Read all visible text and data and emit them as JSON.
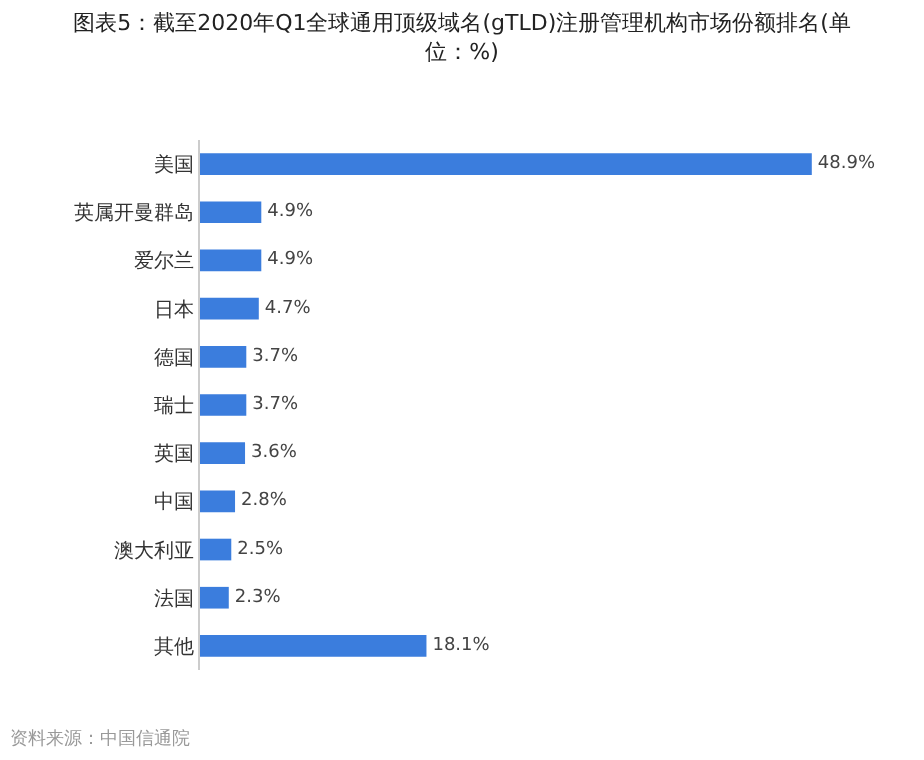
{
  "chart_data": {
    "type": "bar",
    "orientation": "horizontal",
    "title": "图表5：截至2020年Q1全球通用顶级域名(gTLD)注册管理机构市场份额排名(单位：%)",
    "categories": [
      "美国",
      "英属开曼群岛",
      "爱尔兰",
      "日本",
      "德国",
      "瑞士",
      "英国",
      "中国",
      "澳大利亚",
      "法国",
      "其他"
    ],
    "values": [
      48.9,
      4.9,
      4.9,
      4.7,
      3.7,
      3.7,
      3.6,
      2.8,
      2.5,
      2.3,
      18.1
    ],
    "value_labels": [
      "48.9%",
      "4.9%",
      "4.9%",
      "4.7%",
      "3.7%",
      "3.7%",
      "3.6%",
      "2.8%",
      "2.5%",
      "2.3%",
      "18.1%"
    ],
    "color": "#3b7ddd",
    "annotations": [
      "资料来源：中国信通院"
    ]
  }
}
